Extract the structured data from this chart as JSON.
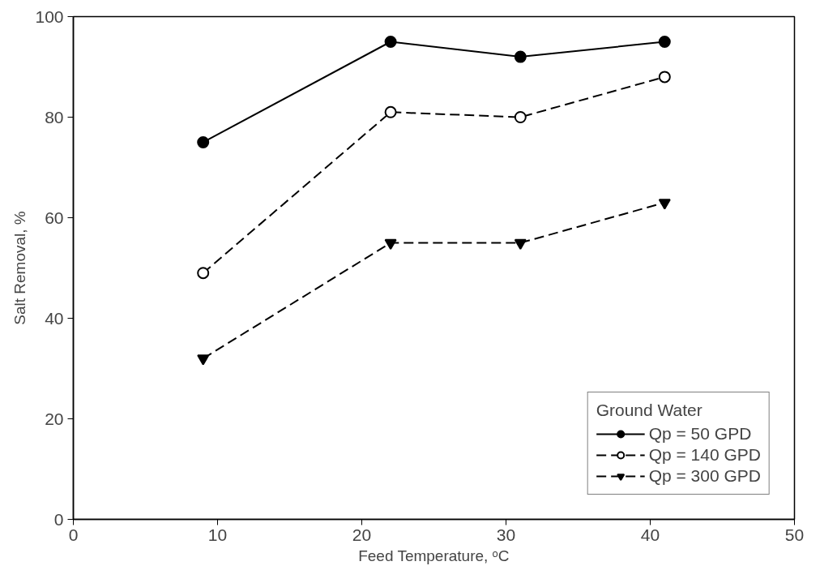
{
  "chart_data": {
    "type": "line",
    "xlabel": "Feed Temperature, ᵒC",
    "ylabel": "Salt Removal, %",
    "legend_title": "Ground Water",
    "legend": "bottom right",
    "grid": false,
    "x": [
      9,
      22,
      31,
      41
    ],
    "xlim": [
      0,
      50
    ],
    "xticks": [
      0,
      10,
      20,
      30,
      40,
      50
    ],
    "ylim": [
      0,
      100
    ],
    "yticks": [
      0,
      20,
      40,
      60,
      80,
      100
    ],
    "series": [
      {
        "name": "Qp = 50 GPD",
        "color": "#000000",
        "values": [
          75,
          95,
          92,
          95
        ],
        "marker": "circle",
        "line_style": "solid"
      },
      {
        "name": "Qp = 140 GPD",
        "color": "#000000",
        "values": [
          49,
          81,
          80,
          88
        ],
        "marker": "circle_open",
        "line_style": "dashed"
      },
      {
        "name": "Qp = 300 GPD",
        "color": "#000000",
        "values": [
          32,
          55,
          55,
          63
        ],
        "marker": "triangle_down",
        "line_style": "dashed"
      }
    ]
  }
}
